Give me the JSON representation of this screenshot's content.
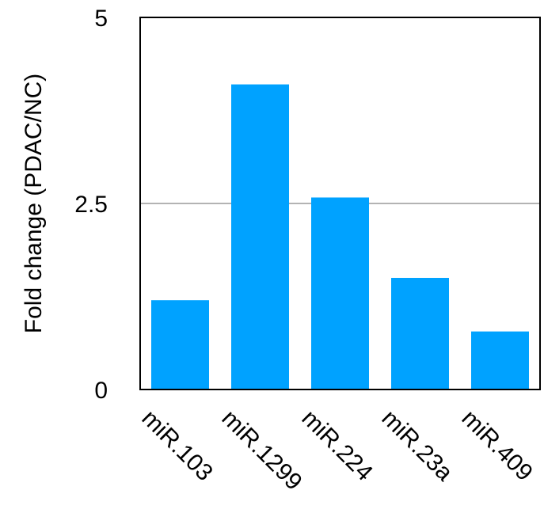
{
  "chart_data": {
    "type": "bar",
    "title": "",
    "xlabel": "",
    "ylabel": "Fold change (PDAC/NC)",
    "categories": [
      "miR.103",
      "miR.1299",
      "miR.224",
      "miR.23a",
      "miR.409"
    ],
    "values": [
      1.2,
      4.1,
      2.58,
      1.5,
      0.78
    ],
    "ylim": [
      0,
      5
    ],
    "yticks": [
      "0",
      "2.5",
      "5"
    ],
    "ytick_values": [
      0,
      2.5,
      5
    ],
    "gridlines": [
      2.5
    ],
    "grid": "horizontal at 2.5",
    "legend": "none",
    "bar_color": "#00a2ff",
    "grid_color": "#b3b3b3",
    "axis_color": "#000000"
  }
}
